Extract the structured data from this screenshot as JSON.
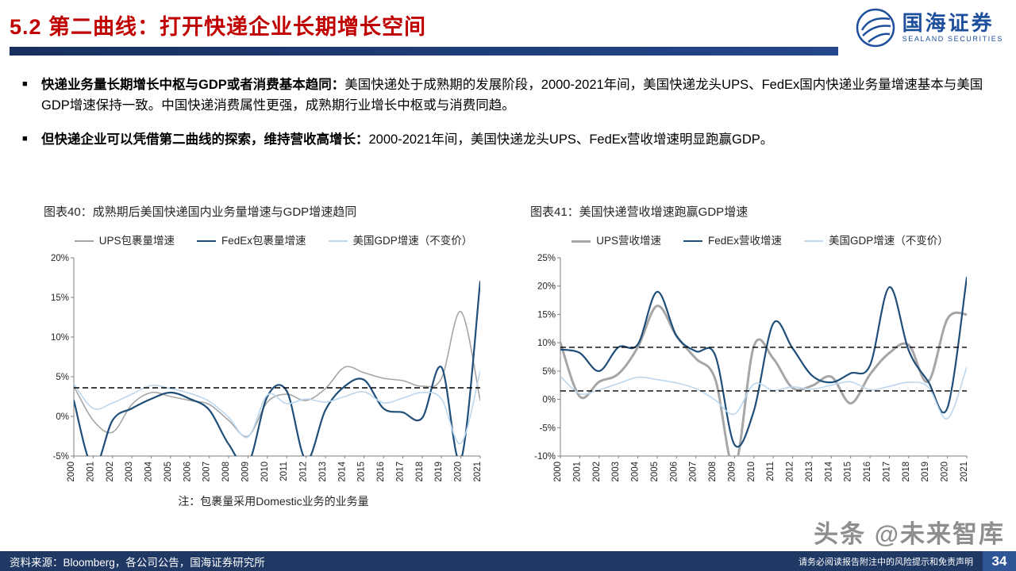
{
  "header": {
    "title": "5.2 第二曲线：打开快递企业长期增长空间",
    "logo": {
      "name": "国海证券",
      "sub": "SEALAND SECURITIES"
    }
  },
  "bullet_marker": "■",
  "bullets": [
    {
      "lead": "快递业务量长期增长中枢与GDP或者消费基本趋同：",
      "body": "美国快递处于成熟期的发展阶段，2000-2021年间，美国快递龙头UPS、FedEx国内快递业务量增速基本与美国GDP增速保持一致。中国快递消费属性更强，成熟期行业增长中枢或与消费同趋。"
    },
    {
      "lead": "但快递企业可以凭借第二曲线的探索，维持营收高增长：",
      "body": "2000-2021年间，美国快递龙头UPS、FedEx营收增速明显跑赢GDP。"
    }
  ],
  "chart_data": [
    {
      "type": "line",
      "title": "图表40：成熟期后美国快递国内业务量增速与GDP增速趋同",
      "note": "注：包裹量采用Domestic业务的业务量",
      "categories": [
        "2000",
        "2001",
        "2002",
        "2003",
        "2004",
        "2005",
        "2006",
        "2007",
        "2008",
        "2009",
        "2010",
        "2011",
        "2012",
        "2013",
        "2014",
        "2015",
        "2016",
        "2017",
        "2018",
        "2019",
        "2020",
        "2021"
      ],
      "ylim": [
        -5,
        20
      ],
      "yticks": [
        -5,
        0,
        5,
        10,
        15,
        20
      ],
      "ref_lines": [
        3.6
      ],
      "legend_position": "top",
      "series": [
        {
          "name": "UPS包裹量增速",
          "color": "#a6a6a6",
          "width": 1.6,
          "values": [
            3.8,
            -0.5,
            -2.0,
            1.5,
            3.0,
            2.5,
            2.0,
            1.5,
            -0.5,
            -2.5,
            1.8,
            2.8,
            2.0,
            3.5,
            6.2,
            5.5,
            4.8,
            4.5,
            3.8,
            4.8,
            13.2,
            2.0
          ]
        },
        {
          "name": "FedEx包裹量增速",
          "color": "#1f4e79",
          "width": 2.2,
          "values": [
            2.0,
            -6.5,
            -0.5,
            1.0,
            2.2,
            3.0,
            2.2,
            0.8,
            -3.5,
            -6.0,
            2.5,
            3.2,
            -5.5,
            0.8,
            3.8,
            4.6,
            1.0,
            0.5,
            -0.2,
            6.2,
            -5.5,
            17.0
          ]
        },
        {
          "name": "美国GDP增速（不变价）",
          "color": "#bdd7ee",
          "width": 1.6,
          "values": [
            4.1,
            1.0,
            1.7,
            2.8,
            3.9,
            3.5,
            2.9,
            1.9,
            -0.1,
            -2.6,
            2.7,
            1.6,
            2.2,
            1.8,
            2.5,
            3.1,
            1.7,
            2.3,
            3.0,
            2.2,
            -3.4,
            5.7
          ]
        }
      ]
    },
    {
      "type": "line",
      "title": "图表41：美国快递营收增速跑赢GDP增速",
      "categories": [
        "2000",
        "2001",
        "2002",
        "2003",
        "2004",
        "2005",
        "2006",
        "2007",
        "2008",
        "2009",
        "2010",
        "2011",
        "2012",
        "2013",
        "2014",
        "2015",
        "2016",
        "2017",
        "2018",
        "2019",
        "2020",
        "2021"
      ],
      "ylim": [
        -10,
        25
      ],
      "yticks": [
        -10,
        -5,
        0,
        5,
        10,
        15,
        20,
        25
      ],
      "ref_lines": [
        9.2,
        1.5
      ],
      "legend_position": "top",
      "series": [
        {
          "name": "UPS营收增速",
          "color": "#a6a6a6",
          "width": 3,
          "values": [
            10.0,
            0.5,
            3.1,
            4.5,
            9.2,
            16.5,
            11.2,
            7.2,
            3.6,
            -12.0,
            9.4,
            7.2,
            2.0,
            2.4,
            4.0,
            -0.7,
            4.4,
            8.2,
            9.6,
            3.1,
            14.2,
            15.0
          ]
        },
        {
          "name": "FedEx营收增速",
          "color": "#1f4e79",
          "width": 2.2,
          "values": [
            8.8,
            8.2,
            5.0,
            9.2,
            9.7,
            19.0,
            11.2,
            8.5,
            7.8,
            -8.0,
            -2.0,
            13.4,
            9.0,
            4.2,
            3.0,
            4.6,
            6.0,
            19.8,
            8.6,
            3.2,
            -1.5,
            21.5
          ]
        },
        {
          "name": "美国GDP增速（不变价）",
          "color": "#bdd7ee",
          "width": 1.6,
          "values": [
            4.1,
            1.0,
            1.7,
            2.8,
            3.9,
            3.5,
            2.9,
            1.9,
            -0.1,
            -2.6,
            2.7,
            1.6,
            2.2,
            1.8,
            2.5,
            3.1,
            1.7,
            2.3,
            3.0,
            2.2,
            -3.4,
            5.7
          ]
        }
      ]
    }
  ],
  "watermark": "头条 @未来智库",
  "footer": {
    "source": "资料来源：Bloomberg，各公司公告，国海证券研究所",
    "disclaimer": "请务必阅读报告附注中的风险提示和免责声明",
    "page": "34"
  },
  "colors": {
    "title_red": "#c00000",
    "accent_navy": "#1f3864",
    "page_box_blue": "#2f5597",
    "logo_blue": "#1e4f9c",
    "ups_gray": "#a6a6a6",
    "fedex_navy": "#1f4e79",
    "gdp_lightblue": "#bdd7ee"
  }
}
